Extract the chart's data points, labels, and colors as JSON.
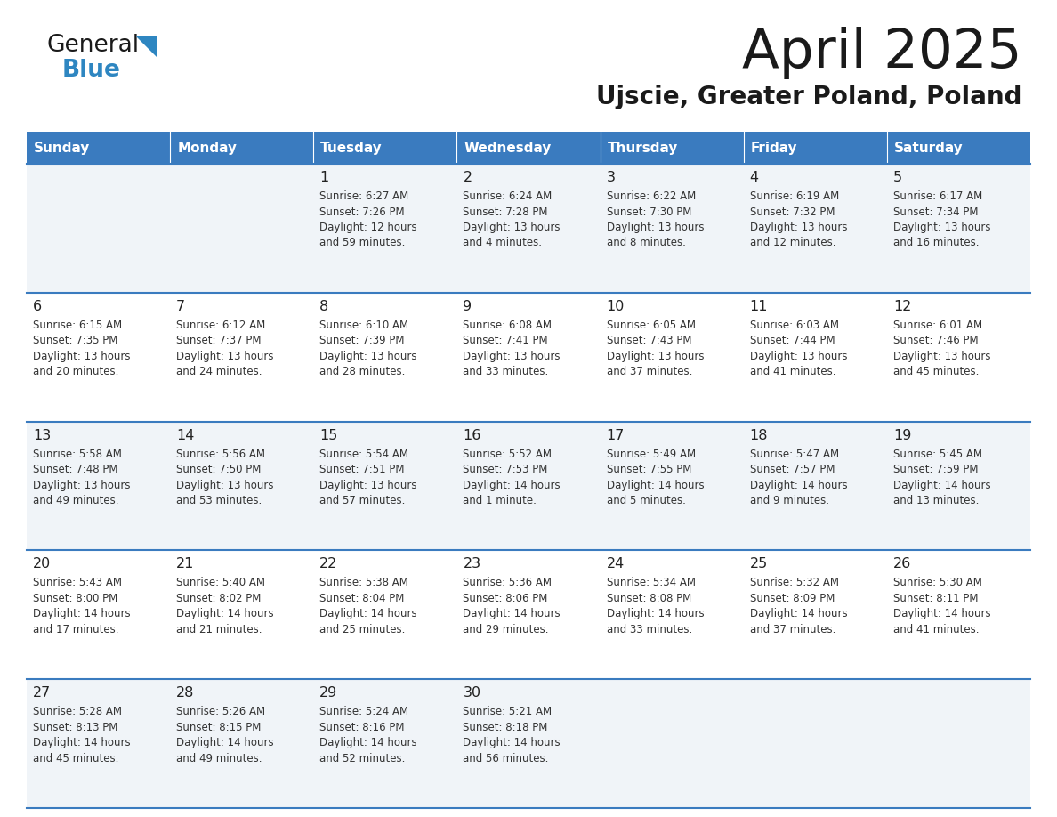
{
  "title": "April 2025",
  "subtitle": "Ujscie, Greater Poland, Poland",
  "header_bg_color": "#3a7bbf",
  "header_text_color": "#ffffff",
  "row_line_color": "#3a7bbf",
  "days_of_week": [
    "Sunday",
    "Monday",
    "Tuesday",
    "Wednesday",
    "Thursday",
    "Friday",
    "Saturday"
  ],
  "calendar_data": [
    [
      {
        "day": "",
        "info": ""
      },
      {
        "day": "",
        "info": ""
      },
      {
        "day": "1",
        "info": "Sunrise: 6:27 AM\nSunset: 7:26 PM\nDaylight: 12 hours\nand 59 minutes."
      },
      {
        "day": "2",
        "info": "Sunrise: 6:24 AM\nSunset: 7:28 PM\nDaylight: 13 hours\nand 4 minutes."
      },
      {
        "day": "3",
        "info": "Sunrise: 6:22 AM\nSunset: 7:30 PM\nDaylight: 13 hours\nand 8 minutes."
      },
      {
        "day": "4",
        "info": "Sunrise: 6:19 AM\nSunset: 7:32 PM\nDaylight: 13 hours\nand 12 minutes."
      },
      {
        "day": "5",
        "info": "Sunrise: 6:17 AM\nSunset: 7:34 PM\nDaylight: 13 hours\nand 16 minutes."
      }
    ],
    [
      {
        "day": "6",
        "info": "Sunrise: 6:15 AM\nSunset: 7:35 PM\nDaylight: 13 hours\nand 20 minutes."
      },
      {
        "day": "7",
        "info": "Sunrise: 6:12 AM\nSunset: 7:37 PM\nDaylight: 13 hours\nand 24 minutes."
      },
      {
        "day": "8",
        "info": "Sunrise: 6:10 AM\nSunset: 7:39 PM\nDaylight: 13 hours\nand 28 minutes."
      },
      {
        "day": "9",
        "info": "Sunrise: 6:08 AM\nSunset: 7:41 PM\nDaylight: 13 hours\nand 33 minutes."
      },
      {
        "day": "10",
        "info": "Sunrise: 6:05 AM\nSunset: 7:43 PM\nDaylight: 13 hours\nand 37 minutes."
      },
      {
        "day": "11",
        "info": "Sunrise: 6:03 AM\nSunset: 7:44 PM\nDaylight: 13 hours\nand 41 minutes."
      },
      {
        "day": "12",
        "info": "Sunrise: 6:01 AM\nSunset: 7:46 PM\nDaylight: 13 hours\nand 45 minutes."
      }
    ],
    [
      {
        "day": "13",
        "info": "Sunrise: 5:58 AM\nSunset: 7:48 PM\nDaylight: 13 hours\nand 49 minutes."
      },
      {
        "day": "14",
        "info": "Sunrise: 5:56 AM\nSunset: 7:50 PM\nDaylight: 13 hours\nand 53 minutes."
      },
      {
        "day": "15",
        "info": "Sunrise: 5:54 AM\nSunset: 7:51 PM\nDaylight: 13 hours\nand 57 minutes."
      },
      {
        "day": "16",
        "info": "Sunrise: 5:52 AM\nSunset: 7:53 PM\nDaylight: 14 hours\nand 1 minute."
      },
      {
        "day": "17",
        "info": "Sunrise: 5:49 AM\nSunset: 7:55 PM\nDaylight: 14 hours\nand 5 minutes."
      },
      {
        "day": "18",
        "info": "Sunrise: 5:47 AM\nSunset: 7:57 PM\nDaylight: 14 hours\nand 9 minutes."
      },
      {
        "day": "19",
        "info": "Sunrise: 5:45 AM\nSunset: 7:59 PM\nDaylight: 14 hours\nand 13 minutes."
      }
    ],
    [
      {
        "day": "20",
        "info": "Sunrise: 5:43 AM\nSunset: 8:00 PM\nDaylight: 14 hours\nand 17 minutes."
      },
      {
        "day": "21",
        "info": "Sunrise: 5:40 AM\nSunset: 8:02 PM\nDaylight: 14 hours\nand 21 minutes."
      },
      {
        "day": "22",
        "info": "Sunrise: 5:38 AM\nSunset: 8:04 PM\nDaylight: 14 hours\nand 25 minutes."
      },
      {
        "day": "23",
        "info": "Sunrise: 5:36 AM\nSunset: 8:06 PM\nDaylight: 14 hours\nand 29 minutes."
      },
      {
        "day": "24",
        "info": "Sunrise: 5:34 AM\nSunset: 8:08 PM\nDaylight: 14 hours\nand 33 minutes."
      },
      {
        "day": "25",
        "info": "Sunrise: 5:32 AM\nSunset: 8:09 PM\nDaylight: 14 hours\nand 37 minutes."
      },
      {
        "day": "26",
        "info": "Sunrise: 5:30 AM\nSunset: 8:11 PM\nDaylight: 14 hours\nand 41 minutes."
      }
    ],
    [
      {
        "day": "27",
        "info": "Sunrise: 5:28 AM\nSunset: 8:13 PM\nDaylight: 14 hours\nand 45 minutes."
      },
      {
        "day": "28",
        "info": "Sunrise: 5:26 AM\nSunset: 8:15 PM\nDaylight: 14 hours\nand 49 minutes."
      },
      {
        "day": "29",
        "info": "Sunrise: 5:24 AM\nSunset: 8:16 PM\nDaylight: 14 hours\nand 52 minutes."
      },
      {
        "day": "30",
        "info": "Sunrise: 5:21 AM\nSunset: 8:18 PM\nDaylight: 14 hours\nand 56 minutes."
      },
      {
        "day": "",
        "info": ""
      },
      {
        "day": "",
        "info": ""
      },
      {
        "day": "",
        "info": ""
      }
    ]
  ],
  "logo_general_color": "#1a1a1a",
  "logo_blue_color": "#2e86c1",
  "logo_triangle_color": "#2e86c1"
}
